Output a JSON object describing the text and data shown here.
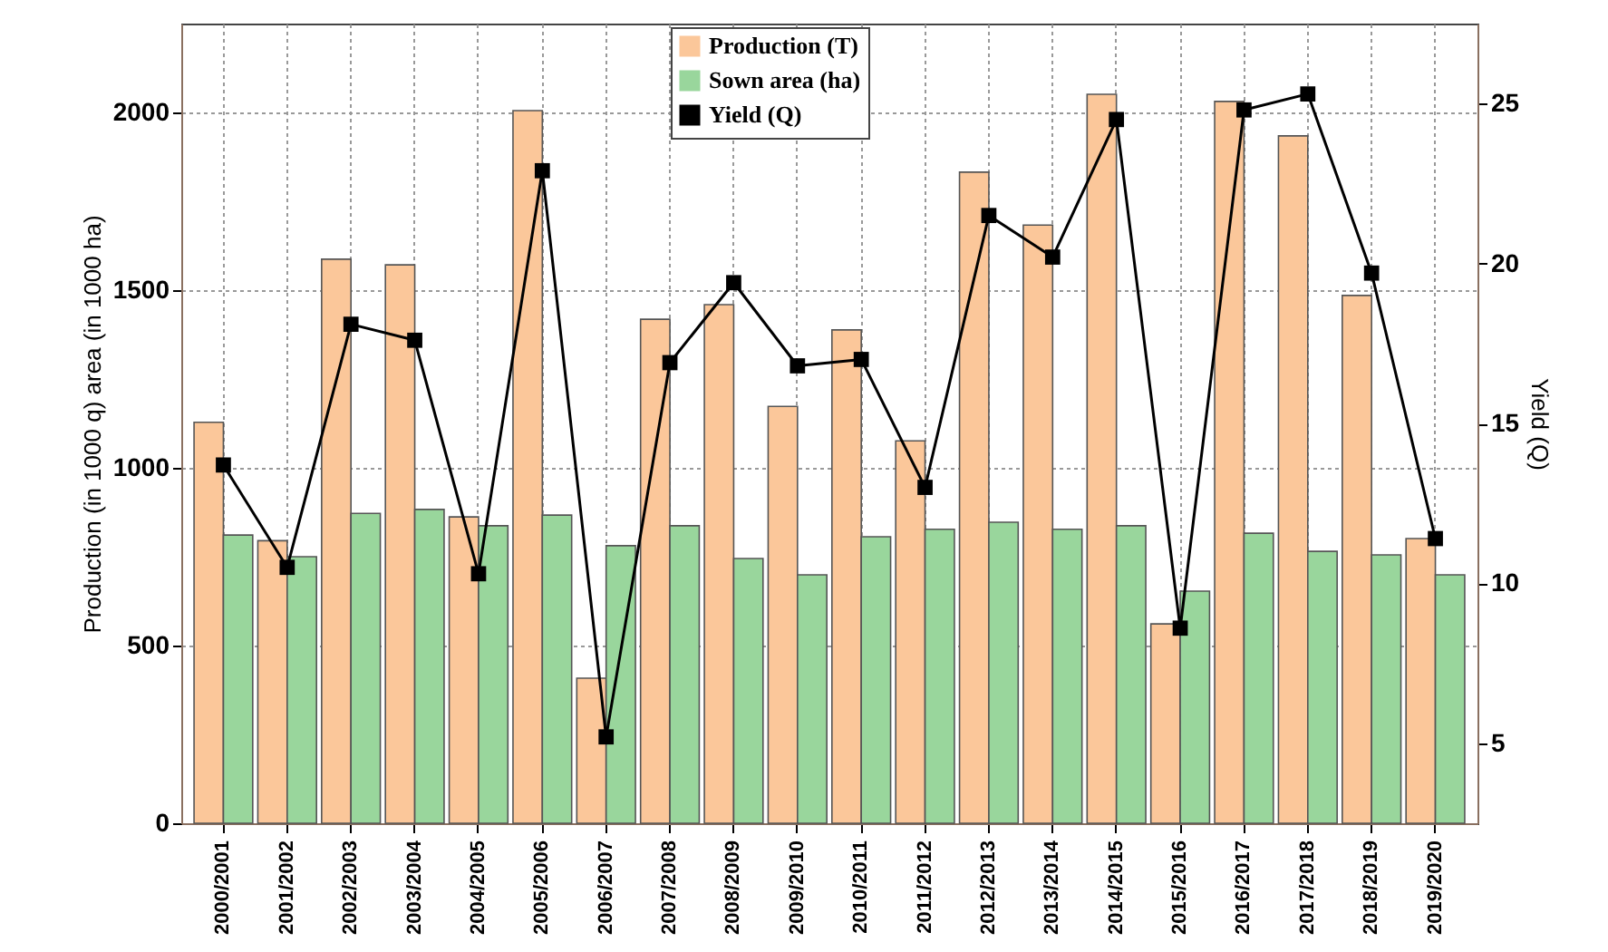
{
  "chart_data": {
    "type": "bar",
    "ylabel": "Production (in 1000 q) area (in 1000 ha)",
    "y2label": "Yield (Q)",
    "categories": [
      "2000/2001",
      "2001/2002",
      "2002/2003",
      "2003/2004",
      "2004/2005",
      "2005/2006",
      "2006/2007",
      "2007/2008",
      "2008/2009",
      "2009/2010",
      "2010/2011",
      "2011/2012",
      "2012/2013",
      "2013/2014",
      "2014/2015",
      "2015/2016",
      "2016/2017",
      "2017/2018",
      "2018/2019",
      "2019/2020"
    ],
    "series": [
      {
        "name": "Production (T)",
        "color": "#fbc79a",
        "values": [
          1128,
          795,
          1587,
          1571,
          862,
          2005,
          408,
          1418,
          1459,
          1173,
          1388,
          1076,
          1832,
          1683,
          2051,
          561,
          2031,
          1934,
          1485,
          801
        ]
      },
      {
        "name": "Sown area (ha)",
        "color": "#99d69c",
        "values": [
          811,
          750,
          872,
          883,
          837,
          867,
          781,
          837,
          745,
          699,
          806,
          827,
          847,
          827,
          837,
          653,
          816,
          765,
          755,
          699
        ]
      },
      {
        "name": "Yield (Q)",
        "type": "line",
        "axis": "y2",
        "color": "#000000",
        "marker": "square",
        "values": [
          13.7,
          10.5,
          18.1,
          17.6,
          10.3,
          22.9,
          5.2,
          16.9,
          19.4,
          16.8,
          17.0,
          13.0,
          21.5,
          20.2,
          24.5,
          8.6,
          24.8,
          25.3,
          19.7,
          11.4
        ]
      }
    ],
    "ylim": [
      0,
      2250
    ],
    "yticks": [
      0,
      500,
      1000,
      1500,
      2000
    ],
    "y2lim": [
      2.5,
      27.5
    ],
    "y2ticks": [
      5,
      10,
      15,
      20,
      25
    ],
    "grid": true,
    "legend": "top"
  }
}
